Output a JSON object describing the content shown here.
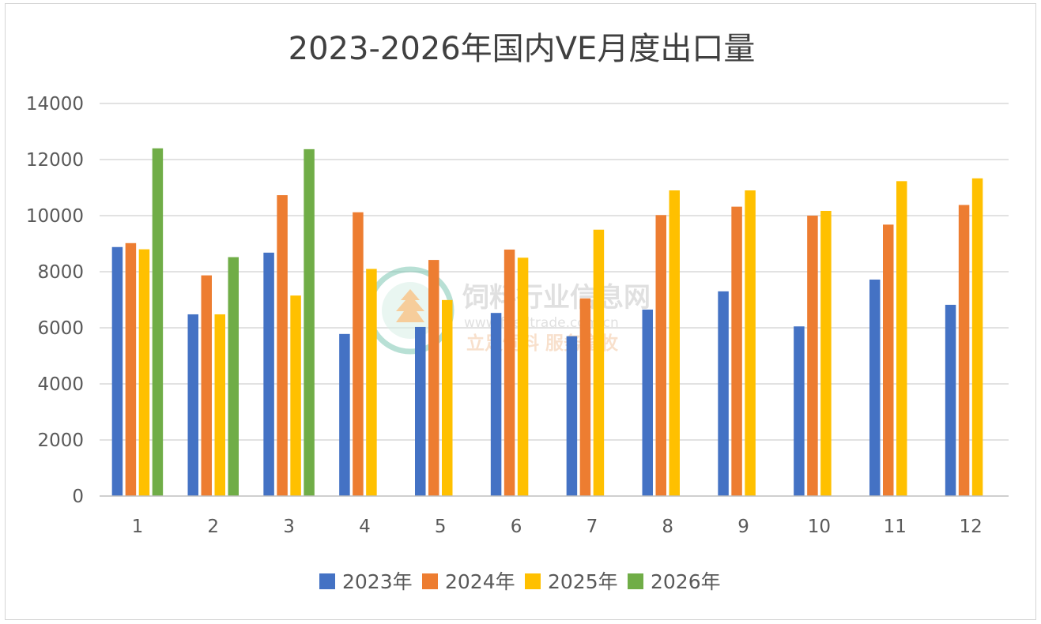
{
  "chart_data": {
    "type": "bar",
    "title": "2023-2026年国内VE月度出口量",
    "categories": [
      "1",
      "2",
      "3",
      "4",
      "5",
      "6",
      "7",
      "8",
      "9",
      "10",
      "11",
      "12"
    ],
    "series": [
      {
        "name": "2023年",
        "color": "#4472C4",
        "values": [
          8880,
          6480,
          8680,
          5780,
          6030,
          6530,
          5700,
          6650,
          7300,
          6050,
          7720,
          6820
        ]
      },
      {
        "name": "2024年",
        "color": "#ED7D31",
        "values": [
          9020,
          7870,
          10730,
          10120,
          8420,
          8790,
          7050,
          10020,
          10320,
          10000,
          9680,
          10380
        ]
      },
      {
        "name": "2025年",
        "color": "#FFC000",
        "values": [
          8800,
          6480,
          7150,
          8100,
          6990,
          8500,
          9500,
          10900,
          10900,
          10170,
          11230,
          11330
        ]
      },
      {
        "name": "2026年",
        "color": "#70AD47",
        "values": [
          12400,
          8520,
          12370,
          null,
          null,
          null,
          null,
          null,
          null,
          null,
          null,
          null
        ]
      }
    ],
    "yticks": [
      "0",
      "2000",
      "4000",
      "6000",
      "8000",
      "10000",
      "12000",
      "14000"
    ],
    "ylim": [
      0,
      14000
    ],
    "grid": true,
    "legend_position": "bottom"
  },
  "watermark": {
    "name": "饲料行业信息网",
    "url": "www.feedtrade.com.cn",
    "slogan": "立足饲料 服务畜牧"
  }
}
